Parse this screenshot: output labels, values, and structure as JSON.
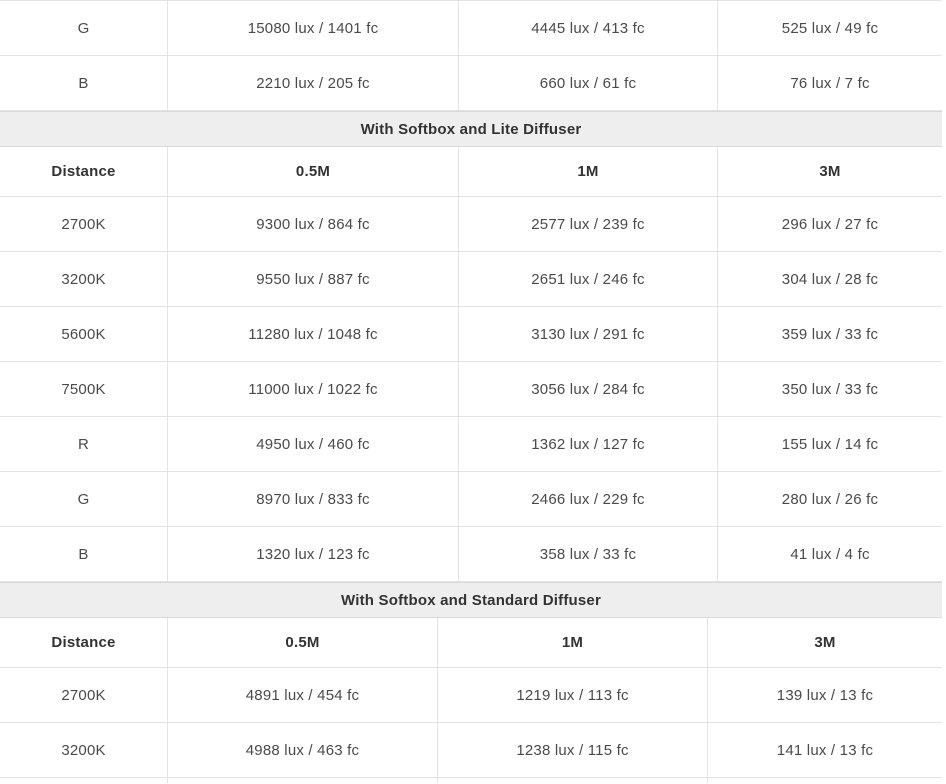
{
  "colors": {
    "section_header_bg": "#eeeeee",
    "border": "#e3e3e3",
    "header_text": "#333333",
    "body_text": "#4a4a4a"
  },
  "top_table": {
    "rows": [
      {
        "label": "G",
        "values": [
          "15080 lux / 1401 fc",
          "4445 lux / 413 fc",
          "525 lux / 49 fc"
        ]
      },
      {
        "label": "B",
        "values": [
          "2210 lux / 205 fc",
          "660 lux / 61 fc",
          "76 lux / 7 fc"
        ]
      }
    ]
  },
  "sections": [
    {
      "title": "With Softbox and Lite Diffuser",
      "headers": [
        "Distance",
        "0.5M",
        "1M",
        "3M"
      ],
      "rows": [
        {
          "label": "2700K",
          "values": [
            "9300 lux / 864 fc",
            "2577 lux / 239 fc",
            "296 lux / 27 fc"
          ]
        },
        {
          "label": "3200K",
          "values": [
            "9550 lux / 887 fc",
            "2651 lux / 246 fc",
            "304 lux / 28 fc"
          ]
        },
        {
          "label": "5600K",
          "values": [
            "11280 lux / 1048 fc",
            "3130 lux / 291 fc",
            "359 lux / 33 fc"
          ]
        },
        {
          "label": "7500K",
          "values": [
            "11000 lux / 1022 fc",
            "3056 lux / 284 fc",
            "350 lux / 33 fc"
          ]
        },
        {
          "label": "R",
          "values": [
            "4950 lux / 460 fc",
            "1362 lux / 127 fc",
            "155 lux / 14 fc"
          ]
        },
        {
          "label": "G",
          "values": [
            "8970 lux / 833 fc",
            "2466 lux / 229 fc",
            "280 lux / 26 fc"
          ]
        },
        {
          "label": "B",
          "values": [
            "1320 lux / 123 fc",
            "358 lux / 33 fc",
            "41 lux / 4 fc"
          ]
        }
      ]
    },
    {
      "title": "With Softbox and Standard Diffuser",
      "headers": [
        "Distance",
        "0.5M",
        "1M",
        "3M"
      ],
      "rows": [
        {
          "label": "2700K",
          "values": [
            "4891 lux / 454 fc",
            "1219 lux / 113 fc",
            "139 lux / 13 fc"
          ]
        },
        {
          "label": "3200K",
          "values": [
            "4988 lux / 463 fc",
            "1238 lux / 115 fc",
            "141 lux / 13 fc"
          ]
        }
      ]
    }
  ]
}
